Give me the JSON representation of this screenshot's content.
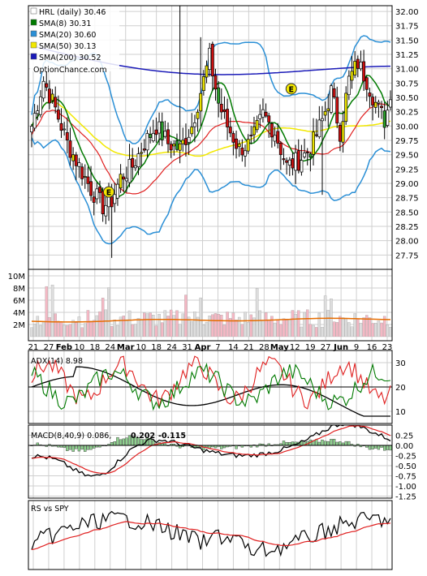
{
  "chart_data": [
    {
      "type": "line",
      "id": "price",
      "legend": [
        {
          "label": "HRL (daily) 30.46",
          "color": "#ffffff"
        },
        {
          "label": "SMA(8) 30.31",
          "color": "#007a00"
        },
        {
          "label": "SMA(20) 30.60",
          "color": "#2a8fd6"
        },
        {
          "label": "SMA(50) 30.13",
          "color": "#f2e800"
        },
        {
          "label": "SMA(200) 30.52",
          "color": "#1a1ab8"
        }
      ],
      "watermark": "OptionChance.com",
      "ylim": [
        27.5,
        32.1
      ],
      "y_ticks": [
        "32.00",
        "31.75",
        "31.50",
        "31.25",
        "31.00",
        "30.75",
        "30.50",
        "30.25",
        "30.00",
        "29.75",
        "29.50",
        "29.25",
        "29.00",
        "28.75",
        "28.50",
        "28.25",
        "28.00",
        "27.75"
      ],
      "volume_ticks": [
        "10M",
        "8M",
        "6M",
        "4M",
        "2M"
      ],
      "x_labels": [
        "21",
        "27",
        "Feb",
        "10",
        "18",
        "24",
        "Mar",
        "10",
        "18",
        "24",
        "31",
        "Apr",
        "7",
        "14",
        "21",
        "28",
        "May",
        "12",
        "19",
        "27",
        "Jun",
        "9",
        "16",
        "23"
      ],
      "bold_x_labels": [
        "Feb",
        "Mar",
        "Apr",
        "May",
        "Jun"
      ],
      "markers": [
        "E",
        "E"
      ],
      "series": [
        {
          "name": "SMA(8)",
          "color": "#007a00"
        },
        {
          "name": "SMA(20)",
          "color": "#2a8fd6"
        },
        {
          "name": "SMA(50)",
          "color": "#f2e800"
        },
        {
          "name": "SMA(200)",
          "color": "#1a1ab8"
        }
      ]
    },
    {
      "type": "line",
      "id": "adx",
      "title": "ADX(14) 8.98",
      "ylim": [
        5,
        35
      ],
      "y_ticks": [
        "30",
        "20",
        "10"
      ]
    },
    {
      "type": "line",
      "id": "macd",
      "title_prefix": "MACD(8,40,9) 0.086,",
      "value_red": "0.202",
      "value_blue": "-0.115",
      "ylim": [
        -1.3,
        0.5
      ],
      "y_ticks": [
        "0.25",
        "0.00",
        "-0.25",
        "-0.50",
        "-0.75",
        "-1.00",
        "-1.25"
      ]
    },
    {
      "type": "line",
      "id": "rs",
      "title": "RS vs SPY"
    }
  ]
}
